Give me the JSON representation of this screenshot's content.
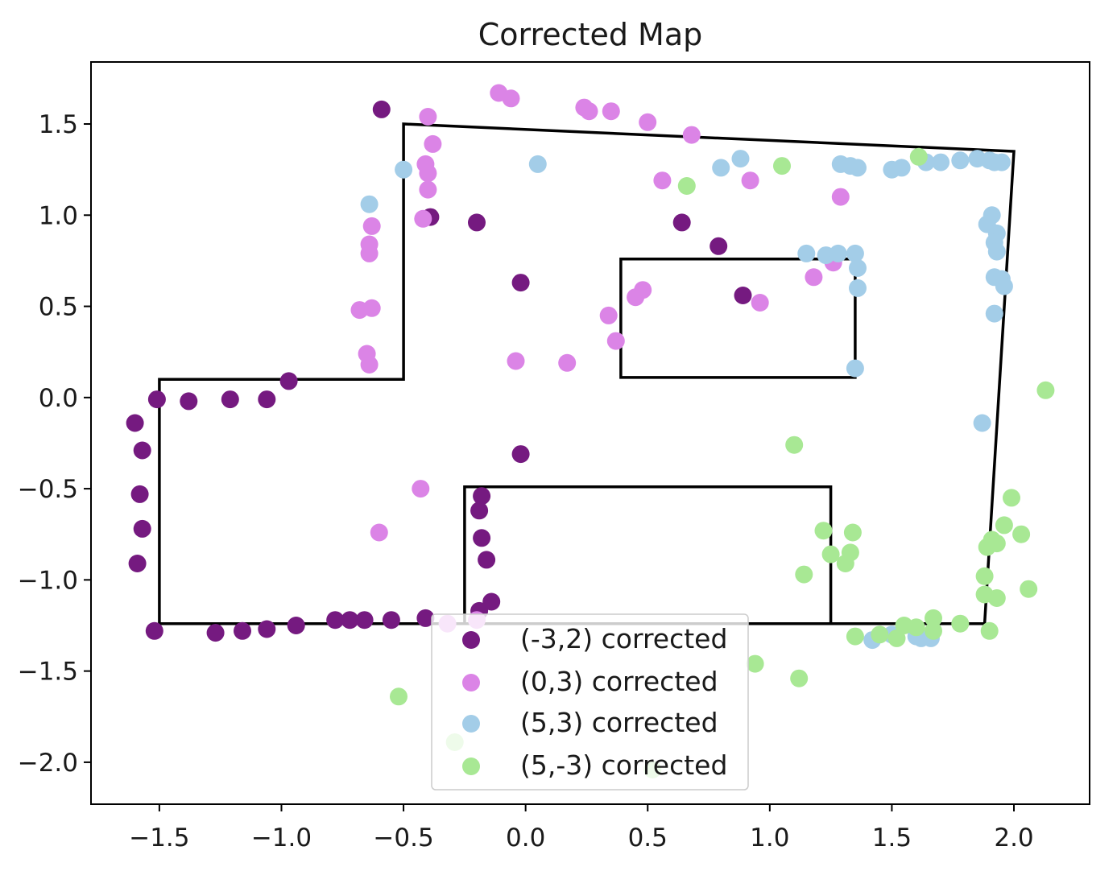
{
  "chart_data": {
    "type": "scatter",
    "title": "Corrected Map",
    "xlabel": "",
    "ylabel": "",
    "xlim": [
      -1.78,
      2.31
    ],
    "ylim": [
      -2.23,
      1.84
    ],
    "grid": false,
    "legend_position": "lower center",
    "x_ticks": [
      -1.5,
      -1.0,
      -0.5,
      0.0,
      0.5,
      1.0,
      1.5,
      2.0
    ],
    "x_tick_labels": [
      "−1.5",
      "−1.0",
      "−0.5",
      "0.0",
      "0.5",
      "1.0",
      "1.5",
      "2.0"
    ],
    "y_ticks": [
      1.5,
      1.0,
      0.5,
      0.0,
      -0.5,
      -1.0,
      -1.5,
      -2.0
    ],
    "y_tick_labels": [
      "1.5",
      "1.0",
      "0.5",
      "0.0",
      "−0.5",
      "−1.0",
      "−1.5",
      "−2.0"
    ],
    "map_outlines": [
      {
        "points": [
          [
            -1.5,
            0.1
          ],
          [
            -0.5,
            0.1
          ],
          [
            -0.5,
            1.5
          ],
          [
            2.0,
            1.35
          ],
          [
            1.88,
            -1.24
          ],
          [
            -1.5,
            -1.24
          ]
        ]
      },
      {
        "points": [
          [
            0.39,
            0.76
          ],
          [
            1.35,
            0.76
          ],
          [
            1.35,
            0.11
          ],
          [
            0.39,
            0.11
          ]
        ]
      },
      {
        "points": [
          [
            -0.25,
            -0.49
          ],
          [
            1.25,
            -0.49
          ],
          [
            1.25,
            -1.24
          ],
          [
            -0.25,
            -1.24
          ]
        ]
      }
    ],
    "series": [
      {
        "name": "(-3,2) corrected",
        "color": "#751a80",
        "points": [
          [
            -0.59,
            1.58
          ],
          [
            -0.39,
            0.99
          ],
          [
            -0.2,
            0.96
          ],
          [
            0.64,
            0.96
          ],
          [
            0.79,
            0.83
          ],
          [
            -0.02,
            0.63
          ],
          [
            0.89,
            0.56
          ],
          [
            -0.97,
            0.09
          ],
          [
            -1.51,
            -0.01
          ],
          [
            -1.38,
            -0.02
          ],
          [
            -1.21,
            -0.01
          ],
          [
            -1.06,
            -0.01
          ],
          [
            -1.6,
            -0.14
          ],
          [
            -1.57,
            -0.29
          ],
          [
            -1.58,
            -0.53
          ],
          [
            -1.57,
            -0.72
          ],
          [
            -1.59,
            -0.91
          ],
          [
            -0.02,
            -0.31
          ],
          [
            -0.18,
            -0.54
          ],
          [
            -0.19,
            -0.62
          ],
          [
            -0.18,
            -0.77
          ],
          [
            -0.16,
            -0.89
          ],
          [
            -0.14,
            -1.12
          ],
          [
            -0.19,
            -1.17
          ],
          [
            -1.52,
            -1.28
          ],
          [
            -1.27,
            -1.29
          ],
          [
            -1.16,
            -1.28
          ],
          [
            -1.06,
            -1.27
          ],
          [
            -0.94,
            -1.25
          ],
          [
            -0.78,
            -1.22
          ],
          [
            -0.72,
            -1.22
          ],
          [
            -0.66,
            -1.22
          ],
          [
            -0.55,
            -1.22
          ],
          [
            -0.41,
            -1.21
          ]
        ]
      },
      {
        "name": "(0,3) corrected",
        "color": "#db84e6",
        "points": [
          [
            -0.11,
            1.67
          ],
          [
            -0.06,
            1.64
          ],
          [
            0.24,
            1.59
          ],
          [
            0.26,
            1.57
          ],
          [
            0.35,
            1.57
          ],
          [
            0.5,
            1.51
          ],
          [
            0.68,
            1.44
          ],
          [
            -0.4,
            1.54
          ],
          [
            -0.38,
            1.39
          ],
          [
            -0.41,
            1.28
          ],
          [
            -0.4,
            1.23
          ],
          [
            -0.4,
            1.14
          ],
          [
            -0.42,
            0.98
          ],
          [
            0.56,
            1.19
          ],
          [
            0.92,
            1.19
          ],
          [
            1.29,
            1.1
          ],
          [
            -0.63,
            0.94
          ],
          [
            -0.64,
            0.84
          ],
          [
            -0.64,
            0.79
          ],
          [
            -0.68,
            0.48
          ],
          [
            -0.63,
            0.49
          ],
          [
            -0.65,
            0.24
          ],
          [
            -0.64,
            0.18
          ],
          [
            -0.04,
            0.2
          ],
          [
            0.17,
            0.19
          ],
          [
            0.34,
            0.45
          ],
          [
            0.37,
            0.31
          ],
          [
            0.45,
            0.55
          ],
          [
            0.48,
            0.59
          ],
          [
            0.96,
            0.52
          ],
          [
            1.18,
            0.66
          ],
          [
            1.26,
            0.74
          ],
          [
            -0.43,
            -0.5
          ],
          [
            -0.6,
            -0.74
          ],
          [
            -0.32,
            -1.24
          ],
          [
            -0.2,
            -1.22
          ]
        ]
      },
      {
        "name": "(5,3) corrected",
        "color": "#a3cde8",
        "points": [
          [
            -0.5,
            1.25
          ],
          [
            0.05,
            1.28
          ],
          [
            -0.64,
            1.06
          ],
          [
            0.8,
            1.26
          ],
          [
            0.88,
            1.31
          ],
          [
            1.29,
            1.28
          ],
          [
            1.33,
            1.27
          ],
          [
            1.36,
            1.26
          ],
          [
            1.5,
            1.25
          ],
          [
            1.54,
            1.26
          ],
          [
            1.64,
            1.29
          ],
          [
            1.7,
            1.29
          ],
          [
            1.78,
            1.3
          ],
          [
            1.85,
            1.31
          ],
          [
            1.9,
            1.3
          ],
          [
            1.92,
            1.29
          ],
          [
            1.95,
            1.29
          ],
          [
            1.91,
            1.0
          ],
          [
            1.89,
            0.95
          ],
          [
            1.93,
            0.9
          ],
          [
            1.92,
            0.85
          ],
          [
            1.93,
            0.8
          ],
          [
            1.92,
            0.66
          ],
          [
            1.95,
            0.65
          ],
          [
            1.96,
            0.61
          ],
          [
            1.92,
            0.46
          ],
          [
            1.87,
            -0.14
          ],
          [
            1.15,
            0.79
          ],
          [
            1.23,
            0.78
          ],
          [
            1.28,
            0.79
          ],
          [
            1.35,
            0.79
          ],
          [
            1.36,
            0.71
          ],
          [
            1.36,
            0.6
          ],
          [
            1.35,
            0.16
          ],
          [
            1.42,
            -1.33
          ],
          [
            1.5,
            -1.3
          ],
          [
            1.6,
            -1.31
          ],
          [
            1.62,
            -1.32
          ],
          [
            1.66,
            -1.32
          ]
        ]
      },
      {
        "name": "(5,-3) corrected",
        "color": "#a8e894",
        "points": [
          [
            1.05,
            1.27
          ],
          [
            1.61,
            1.32
          ],
          [
            0.66,
            1.16
          ],
          [
            2.13,
            0.04
          ],
          [
            1.1,
            -0.26
          ],
          [
            1.99,
            -0.55
          ],
          [
            1.96,
            -0.7
          ],
          [
            2.03,
            -0.75
          ],
          [
            1.22,
            -0.73
          ],
          [
            1.34,
            -0.74
          ],
          [
            1.25,
            -0.86
          ],
          [
            1.33,
            -0.85
          ],
          [
            1.31,
            -0.91
          ],
          [
            1.91,
            -0.78
          ],
          [
            1.93,
            -0.8
          ],
          [
            1.89,
            -0.82
          ],
          [
            1.14,
            -0.97
          ],
          [
            1.88,
            -0.98
          ],
          [
            2.06,
            -1.05
          ],
          [
            1.88,
            -1.08
          ],
          [
            1.93,
            -1.1
          ],
          [
            1.35,
            -1.31
          ],
          [
            1.45,
            -1.3
          ],
          [
            1.52,
            -1.32
          ],
          [
            1.55,
            -1.25
          ],
          [
            1.6,
            -1.26
          ],
          [
            1.67,
            -1.21
          ],
          [
            1.67,
            -1.28
          ],
          [
            1.78,
            -1.24
          ],
          [
            1.9,
            -1.28
          ],
          [
            0.94,
            -1.46
          ],
          [
            1.12,
            -1.54
          ],
          [
            -0.52,
            -1.64
          ],
          [
            -0.29,
            -1.89
          ],
          [
            0.52,
            -2.04
          ]
        ]
      }
    ]
  }
}
